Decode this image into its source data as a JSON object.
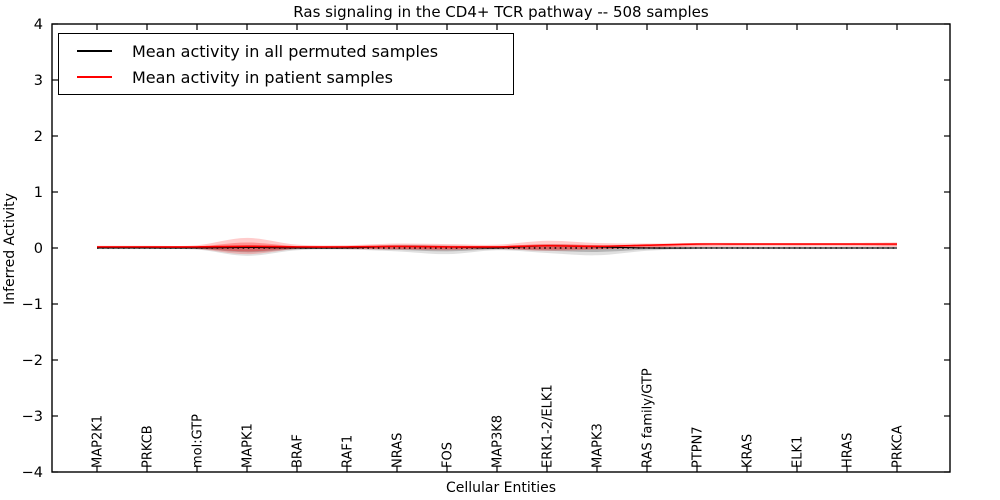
{
  "figure": {
    "title": "Ras signaling in the CD4+ TCR pathway -- 508 samples",
    "background_color": "#ffffff",
    "axis_color": "#000000"
  },
  "legend": {
    "position": "upper left",
    "items": [
      {
        "label": "Mean activity in all permuted samples",
        "color": "#000000"
      },
      {
        "label": "Mean activity in patient samples",
        "color": "#ff0000"
      }
    ]
  },
  "chart_data": {
    "type": "line",
    "title": "Ras signaling in the CD4+ TCR pathway -- 508 samples",
    "xlabel": "Cellular Entities",
    "ylabel": "Inferred Activity",
    "ylim": [
      -4,
      4
    ],
    "yticks": [
      4,
      3,
      2,
      1,
      0,
      -1,
      -2,
      -3,
      -4
    ],
    "ytick_labels": [
      "4",
      "3",
      "2",
      "1",
      "0",
      "−1",
      "−2",
      "−3",
      "−4"
    ],
    "grid": false,
    "legend_position": "upper left",
    "categories": [
      "MAP2K1",
      "PRKCB",
      "mol:GTP",
      "MAPK1",
      "BRAF",
      "RAF1",
      "NRAS",
      "FOS",
      "MAP3K8",
      "ERK1-2/ELK1",
      "MAPK3",
      "RAS family/GTP",
      "PTPN7",
      "KRAS",
      "ELK1",
      "HRAS",
      "PRKCA"
    ],
    "series": [
      {
        "name": "Mean activity in all permuted samples",
        "color": "#000000",
        "style": "solid",
        "values": [
          0.0,
          0.0,
          0.0,
          0.01,
          0.0,
          0.0,
          0.03,
          0.02,
          0.0,
          0.04,
          0.02,
          0.0,
          0.0,
          0.0,
          0.0,
          0.0,
          0.0
        ]
      },
      {
        "name": "Mean activity in patient samples",
        "color": "#ff0000",
        "style": "solid",
        "values": [
          0.02,
          0.02,
          0.02,
          0.03,
          0.02,
          0.02,
          0.03,
          0.02,
          0.02,
          0.04,
          0.03,
          0.05,
          0.07,
          0.07,
          0.07,
          0.07,
          0.07
        ]
      }
    ],
    "bands": [
      {
        "name": "permuted samples spread",
        "color": "#000000",
        "opacity": 0.12,
        "upper": [
          0.02,
          0.02,
          0.02,
          0.05,
          0.03,
          0.02,
          0.06,
          0.05,
          0.03,
          0.07,
          0.05,
          0.03,
          0.02,
          0.02,
          0.02,
          0.02,
          0.02
        ],
        "lower": [
          -0.02,
          -0.02,
          -0.03,
          -0.14,
          -0.04,
          -0.03,
          -0.06,
          -0.11,
          -0.04,
          -0.09,
          -0.13,
          -0.05,
          -0.02,
          -0.02,
          -0.02,
          -0.02,
          -0.02
        ]
      },
      {
        "name": "patient samples spread",
        "color": "#ff0000",
        "opacity": 0.2,
        "upper": [
          0.04,
          0.04,
          0.05,
          0.18,
          0.06,
          0.05,
          0.08,
          0.07,
          0.06,
          0.13,
          0.09,
          0.08,
          0.09,
          0.09,
          0.09,
          0.09,
          0.1
        ],
        "lower": [
          -0.01,
          -0.01,
          -0.02,
          -0.11,
          -0.02,
          -0.02,
          -0.03,
          -0.04,
          -0.02,
          -0.05,
          -0.03,
          0.01,
          0.04,
          0.05,
          0.05,
          0.05,
          0.04
        ]
      }
    ],
    "zero_reference_line": {
      "y": 0,
      "style": "dotted",
      "color": "#000000"
    }
  }
}
